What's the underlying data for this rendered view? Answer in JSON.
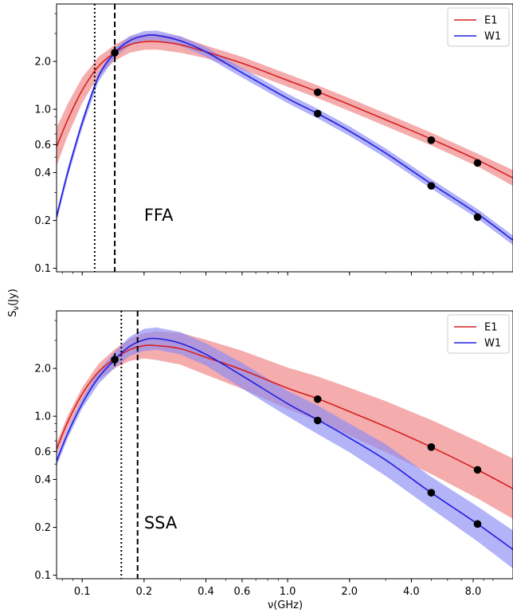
{
  "figure": {
    "xlabel": "ν(GHz)",
    "ylabel": "S_ν(Jy)",
    "xticks": [
      "0.1",
      "0.2",
      "0.4",
      "0.6",
      "1.0",
      "2.0",
      "4.0",
      "8.0"
    ],
    "yticks": [
      "0.1",
      "0.2",
      "0.4",
      "0.6",
      "1.0",
      "2.0"
    ],
    "xscale": "log",
    "yscale": "log"
  },
  "chart_data": [
    {
      "type": "line",
      "panel": "top",
      "annotation": "FFA",
      "xlim": [
        0.075,
        12.5
      ],
      "ylim": [
        0.095,
        4.6
      ],
      "grid": false,
      "legend_placement": "top-right",
      "legend": [
        "E1",
        "W1"
      ],
      "vlines": [
        {
          "x": 0.115,
          "style": "dotted"
        },
        {
          "x": 0.144,
          "style": "dashed"
        }
      ],
      "series": [
        {
          "name": "E1",
          "color": "#d62020",
          "band_color": "#f08080",
          "x": [
            0.075,
            0.085,
            0.1,
            0.12,
            0.144,
            0.17,
            0.2,
            0.23,
            0.3,
            0.4,
            0.6,
            1.0,
            1.4,
            2.0,
            3.0,
            5.0,
            8.4,
            12.5
          ],
          "y": [
            0.58,
            0.86,
            1.32,
            1.86,
            2.27,
            2.55,
            2.66,
            2.67,
            2.55,
            2.3,
            1.95,
            1.52,
            1.29,
            1.07,
            0.86,
            0.65,
            0.48,
            0.37
          ],
          "band": [
            0.12,
            0.1,
            0.08,
            0.06,
            0.05,
            0.05,
            0.05,
            0.05,
            0.05,
            0.04,
            0.04,
            0.04,
            0.04,
            0.04,
            0.04,
            0.04,
            0.04,
            0.05
          ]
        },
        {
          "name": "W1",
          "color": "#1f1fe0",
          "band_color": "#8a8af5",
          "x": [
            0.075,
            0.085,
            0.1,
            0.12,
            0.144,
            0.17,
            0.2,
            0.23,
            0.3,
            0.4,
            0.6,
            1.0,
            1.4,
            2.0,
            3.0,
            5.0,
            8.4,
            12.5
          ],
          "y": [
            0.21,
            0.4,
            0.82,
            1.6,
            2.27,
            2.7,
            2.9,
            2.92,
            2.7,
            2.3,
            1.7,
            1.17,
            0.94,
            0.73,
            0.53,
            0.34,
            0.22,
            0.15
          ],
          "band": [
            0.03,
            0.03,
            0.03,
            0.03,
            0.03,
            0.03,
            0.03,
            0.03,
            0.03,
            0.03,
            0.03,
            0.03,
            0.03,
            0.03,
            0.03,
            0.03,
            0.03,
            0.03
          ]
        }
      ],
      "points": [
        {
          "x": 0.144,
          "y": 2.27
        },
        {
          "x": 1.4,
          "y": 1.28
        },
        {
          "x": 1.4,
          "y": 0.94
        },
        {
          "x": 5.0,
          "y": 0.64
        },
        {
          "x": 5.0,
          "y": 0.33
        },
        {
          "x": 8.4,
          "y": 0.46
        },
        {
          "x": 8.4,
          "y": 0.21
        }
      ]
    },
    {
      "type": "line",
      "panel": "bottom",
      "annotation": "SSA",
      "xlim": [
        0.075,
        12.5
      ],
      "ylim": [
        0.095,
        4.6
      ],
      "grid": false,
      "legend_placement": "top-right",
      "legend": [
        "E1",
        "W1"
      ],
      "vlines": [
        {
          "x": 0.155,
          "style": "dotted"
        },
        {
          "x": 0.186,
          "style": "dashed"
        }
      ],
      "series": [
        {
          "name": "E1",
          "color": "#d62020",
          "band_color": "#f08080",
          "x": [
            0.075,
            0.085,
            0.1,
            0.12,
            0.144,
            0.17,
            0.2,
            0.23,
            0.3,
            0.4,
            0.6,
            1.0,
            1.4,
            2.0,
            3.0,
            5.0,
            8.4,
            12.5
          ],
          "y": [
            0.62,
            0.92,
            1.38,
            1.9,
            2.3,
            2.62,
            2.78,
            2.78,
            2.66,
            2.35,
            1.96,
            1.5,
            1.29,
            1.07,
            0.86,
            0.64,
            0.46,
            0.35
          ],
          "band": [
            0.04,
            0.04,
            0.04,
            0.05,
            0.06,
            0.07,
            0.08,
            0.09,
            0.1,
            0.11,
            0.12,
            0.13,
            0.14,
            0.15,
            0.16,
            0.17,
            0.18,
            0.19
          ]
        },
        {
          "name": "W1",
          "color": "#1f1fe0",
          "band_color": "#8a8af5",
          "x": [
            0.075,
            0.085,
            0.1,
            0.12,
            0.144,
            0.17,
            0.2,
            0.23,
            0.3,
            0.4,
            0.6,
            1.0,
            1.4,
            2.0,
            3.0,
            5.0,
            8.4,
            12.5
          ],
          "y": [
            0.52,
            0.78,
            1.2,
            1.75,
            2.27,
            2.75,
            3.02,
            3.08,
            2.88,
            2.45,
            1.8,
            1.2,
            0.95,
            0.73,
            0.53,
            0.33,
            0.21,
            0.145
          ],
          "band": [
            0.03,
            0.03,
            0.03,
            0.04,
            0.05,
            0.06,
            0.07,
            0.07,
            0.07,
            0.07,
            0.08,
            0.08,
            0.09,
            0.09,
            0.1,
            0.1,
            0.11,
            0.12
          ]
        }
      ],
      "points": [
        {
          "x": 0.144,
          "y": 2.27
        },
        {
          "x": 1.4,
          "y": 1.28
        },
        {
          "x": 1.4,
          "y": 0.94
        },
        {
          "x": 5.0,
          "y": 0.64
        },
        {
          "x": 5.0,
          "y": 0.33
        },
        {
          "x": 8.4,
          "y": 0.46
        },
        {
          "x": 8.4,
          "y": 0.21
        }
      ]
    }
  ]
}
